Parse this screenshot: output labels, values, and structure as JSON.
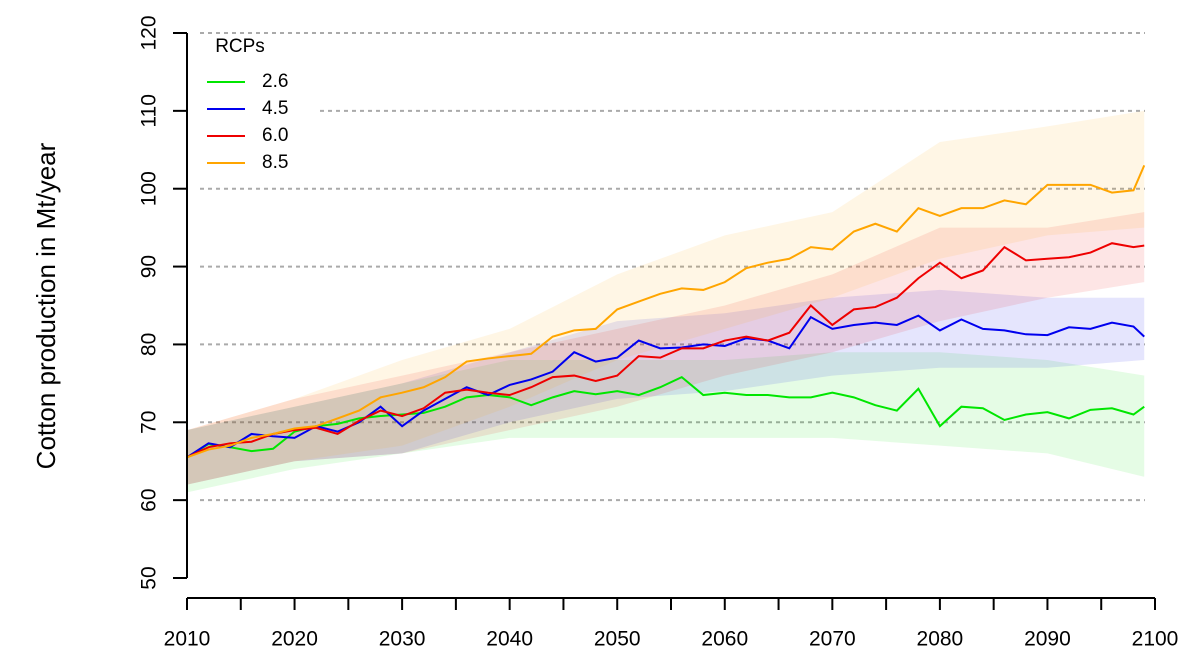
{
  "chart_data": {
    "type": "line",
    "y_label": "Cotton production in Mt/year",
    "legend_title": "RCPs",
    "legend_position": "top-left",
    "grid": true,
    "xlim": [
      2010,
      2100
    ],
    "xticks": [
      2010,
      2020,
      2030,
      2040,
      2050,
      2060,
      2070,
      2080,
      2090,
      2100
    ],
    "x_minor_ticks": [
      2015,
      2025,
      2035,
      2045,
      2055,
      2065,
      2075,
      2085,
      2095
    ],
    "ylim": [
      50,
      120
    ],
    "yticks": [
      50,
      60,
      70,
      80,
      90,
      100,
      110,
      120
    ],
    "x": [
      2010,
      2012,
      2014,
      2016,
      2018,
      2020,
      2022,
      2024,
      2026,
      2028,
      2030,
      2032,
      2034,
      2036,
      2038,
      2040,
      2042,
      2044,
      2046,
      2048,
      2050,
      2052,
      2054,
      2056,
      2058,
      2060,
      2062,
      2064,
      2066,
      2068,
      2070,
      2072,
      2074,
      2076,
      2078,
      2080,
      2082,
      2084,
      2086,
      2088,
      2090,
      2092,
      2094,
      2096,
      2098,
      2099
    ],
    "band_x": [
      2010,
      2020,
      2030,
      2040,
      2050,
      2060,
      2070,
      2080,
      2090,
      2099
    ],
    "series": [
      {
        "name": "2.6",
        "color": "#00e600",
        "values": [
          65.5,
          67.2,
          66.8,
          66.3,
          66.6,
          68.8,
          69.5,
          69.8,
          70.5,
          70.8,
          71,
          71.2,
          72,
          73.2,
          73.5,
          73.2,
          72.2,
          73.2,
          74,
          73.6,
          74,
          73.5,
          74.5,
          75.8,
          73.5,
          73.8,
          73.5,
          73.5,
          73.2,
          73.2,
          73.8,
          73.2,
          72.2,
          71.5,
          74.3,
          69.5,
          72,
          71.8,
          70.3,
          71,
          71.3,
          70.5,
          71.6,
          71.8,
          71,
          72
        ],
        "band_lower": [
          61,
          64,
          66,
          68,
          68,
          68,
          68,
          67,
          66,
          63
        ],
        "band_upper": [
          69,
          72,
          75,
          78,
          78,
          78,
          79,
          79,
          78,
          76
        ]
      },
      {
        "name": "4.5",
        "color": "#0000ee",
        "values": [
          65.5,
          67.3,
          66.8,
          68.5,
          68.2,
          68,
          69.5,
          68.8,
          70,
          72,
          69.5,
          71.5,
          73,
          74.5,
          73.5,
          74.8,
          75.5,
          76.5,
          79,
          77.8,
          78.3,
          80.5,
          79.5,
          79.6,
          80,
          79.8,
          80.8,
          80.5,
          79.5,
          83.5,
          82,
          82.5,
          82.8,
          82.5,
          83.7,
          81.8,
          83.2,
          82,
          81.8,
          81.3,
          81.2,
          82.2,
          82,
          82.8,
          82.3,
          81
        ],
        "band_lower": [
          62,
          65,
          66,
          70,
          73,
          74,
          76,
          77,
          77,
          78
        ],
        "band_upper": [
          69,
          72,
          75,
          79,
          83,
          84,
          86,
          87,
          86,
          86
        ]
      },
      {
        "name": "6.0",
        "color": "#ee0000",
        "values": [
          65.5,
          66.8,
          67.3,
          67.5,
          68.5,
          69,
          69.3,
          68.5,
          70.2,
          71.5,
          70.8,
          71.8,
          73.8,
          74.2,
          73.8,
          73.5,
          74.5,
          75.8,
          76,
          75.3,
          76,
          78.5,
          78.3,
          79.5,
          79.5,
          80.5,
          81,
          80.5,
          81.5,
          85,
          82.5,
          84.5,
          84.8,
          86,
          88.5,
          90.5,
          88.5,
          89.5,
          92.5,
          90.8,
          91,
          91.2,
          91.8,
          93,
          92.5,
          92.7
        ],
        "band_lower": [
          62,
          65,
          66,
          69,
          72,
          76,
          79,
          83,
          86,
          88
        ],
        "band_upper": [
          69,
          73,
          76,
          79,
          82,
          85,
          89,
          95,
          95,
          97
        ]
      },
      {
        "name": "8.5",
        "color": "#ffa500",
        "values": [
          65.5,
          66.5,
          67,
          68,
          68.5,
          69.2,
          69.5,
          70.5,
          71.5,
          73.2,
          73.8,
          74.5,
          75.8,
          77.8,
          78.2,
          78.5,
          78.8,
          81,
          81.8,
          82,
          84.5,
          85.5,
          86.5,
          87.2,
          87,
          88,
          89.8,
          90.5,
          91,
          92.5,
          92.2,
          94.5,
          95.5,
          94.5,
          97.5,
          96.5,
          97.5,
          97.5,
          98.5,
          98,
          100.5,
          100.5,
          100.5,
          99.5,
          99.8,
          103
        ],
        "band_lower": [
          62,
          65,
          67,
          72,
          78,
          82,
          86,
          91,
          94,
          95
        ],
        "band_upper": [
          69,
          73,
          78,
          82,
          89,
          94,
          97,
          106,
          108,
          110
        ]
      }
    ]
  }
}
